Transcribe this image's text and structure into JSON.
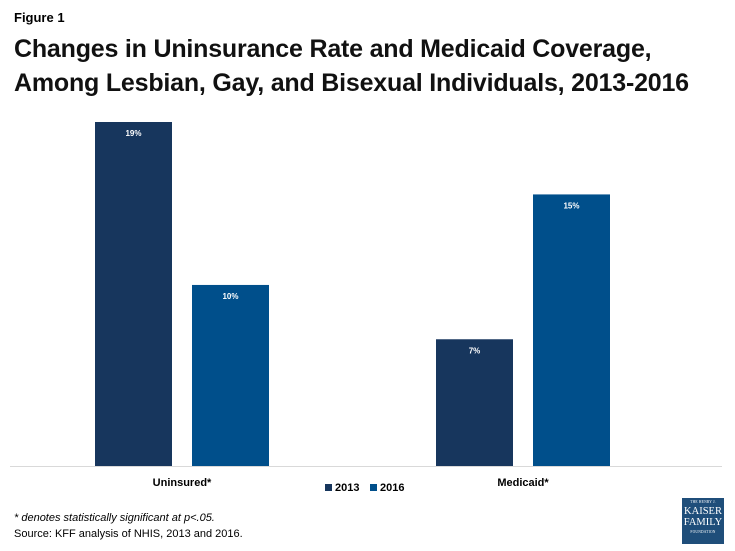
{
  "figure_label": "Figure 1",
  "title": "Changes in Uninsurance Rate and Medicaid Coverage, Among Lesbian, Gay, and Bisexual Individuals, 2013-2016",
  "footnote": "* denotes statistically significant at p<.05.",
  "source": "Source: KFF analysis of NHIS, 2013 and 2016.",
  "logo": {
    "line1": "THE HENRY J.",
    "line2": "KAISER",
    "line3": "FAMILY",
    "line4": "FOUNDATION"
  },
  "chart_data": {
    "type": "bar",
    "categories": [
      "Uninsured*",
      "Medicaid*"
    ],
    "series": [
      {
        "name": "2013",
        "values": [
          19,
          7
        ],
        "labels": [
          "19%",
          "7%"
        ],
        "color": "#17365d"
      },
      {
        "name": "2016",
        "values": [
          10,
          15
        ],
        "labels": [
          "10%",
          "15%"
        ],
        "color": "#004f8b"
      }
    ],
    "ylim": [
      0,
      19
    ],
    "legend_position": "bottom",
    "grid": false,
    "xlabel": "",
    "ylabel": ""
  }
}
